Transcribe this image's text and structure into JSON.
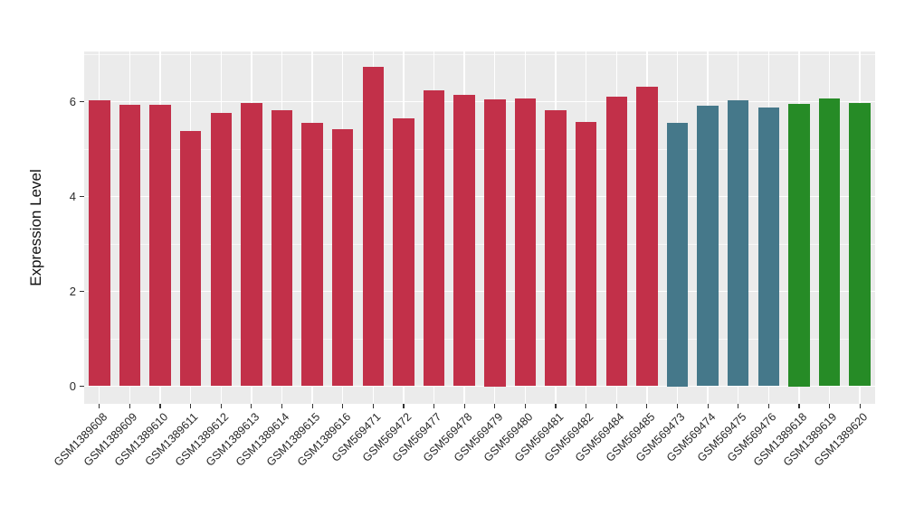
{
  "chart_data": {
    "type": "bar",
    "title": "",
    "xlabel": "",
    "ylabel": "Expression Level",
    "ylim": [
      -0.36,
      7.05
    ],
    "yticks": [
      0,
      2,
      4,
      6
    ],
    "yminor": [
      1,
      3,
      5,
      7
    ],
    "grid": true,
    "legend_position": "none",
    "panel_background": "#EBEBEB",
    "gridline_color": "#FFFFFF",
    "axis_text_color": "#262626",
    "group_colors": {
      "group1": "#C23049",
      "group2": "#45788A",
      "group3": "#268B26"
    },
    "categories": [
      "GSM1389608",
      "GSM1389609",
      "GSM1389610",
      "GSM1389611",
      "GSM1389612",
      "GSM1389613",
      "GSM1389614",
      "GSM1389615",
      "GSM1389616",
      "GSM569471",
      "GSM569472",
      "GSM569477",
      "GSM569478",
      "GSM569479",
      "GSM569480",
      "GSM569481",
      "GSM569482",
      "GSM569484",
      "GSM569485",
      "GSM569473",
      "GSM569474",
      "GSM569475",
      "GSM569476",
      "GSM1389618",
      "GSM1389619",
      "GSM1389620"
    ],
    "values": [
      6.03,
      5.93,
      5.94,
      5.38,
      5.76,
      5.98,
      5.82,
      5.56,
      5.41,
      6.73,
      5.64,
      6.23,
      6.14,
      6.05,
      6.07,
      5.81,
      5.58,
      6.11,
      6.32,
      5.55,
      5.92,
      6.03,
      5.88,
      5.95,
      6.06,
      5.97
    ],
    "bar_groups": [
      "group1",
      "group1",
      "group1",
      "group1",
      "group1",
      "group1",
      "group1",
      "group1",
      "group1",
      "group1",
      "group1",
      "group1",
      "group1",
      "group1",
      "group1",
      "group1",
      "group1",
      "group1",
      "group1",
      "group2",
      "group2",
      "group2",
      "group2",
      "group3",
      "group3",
      "group3"
    ]
  }
}
